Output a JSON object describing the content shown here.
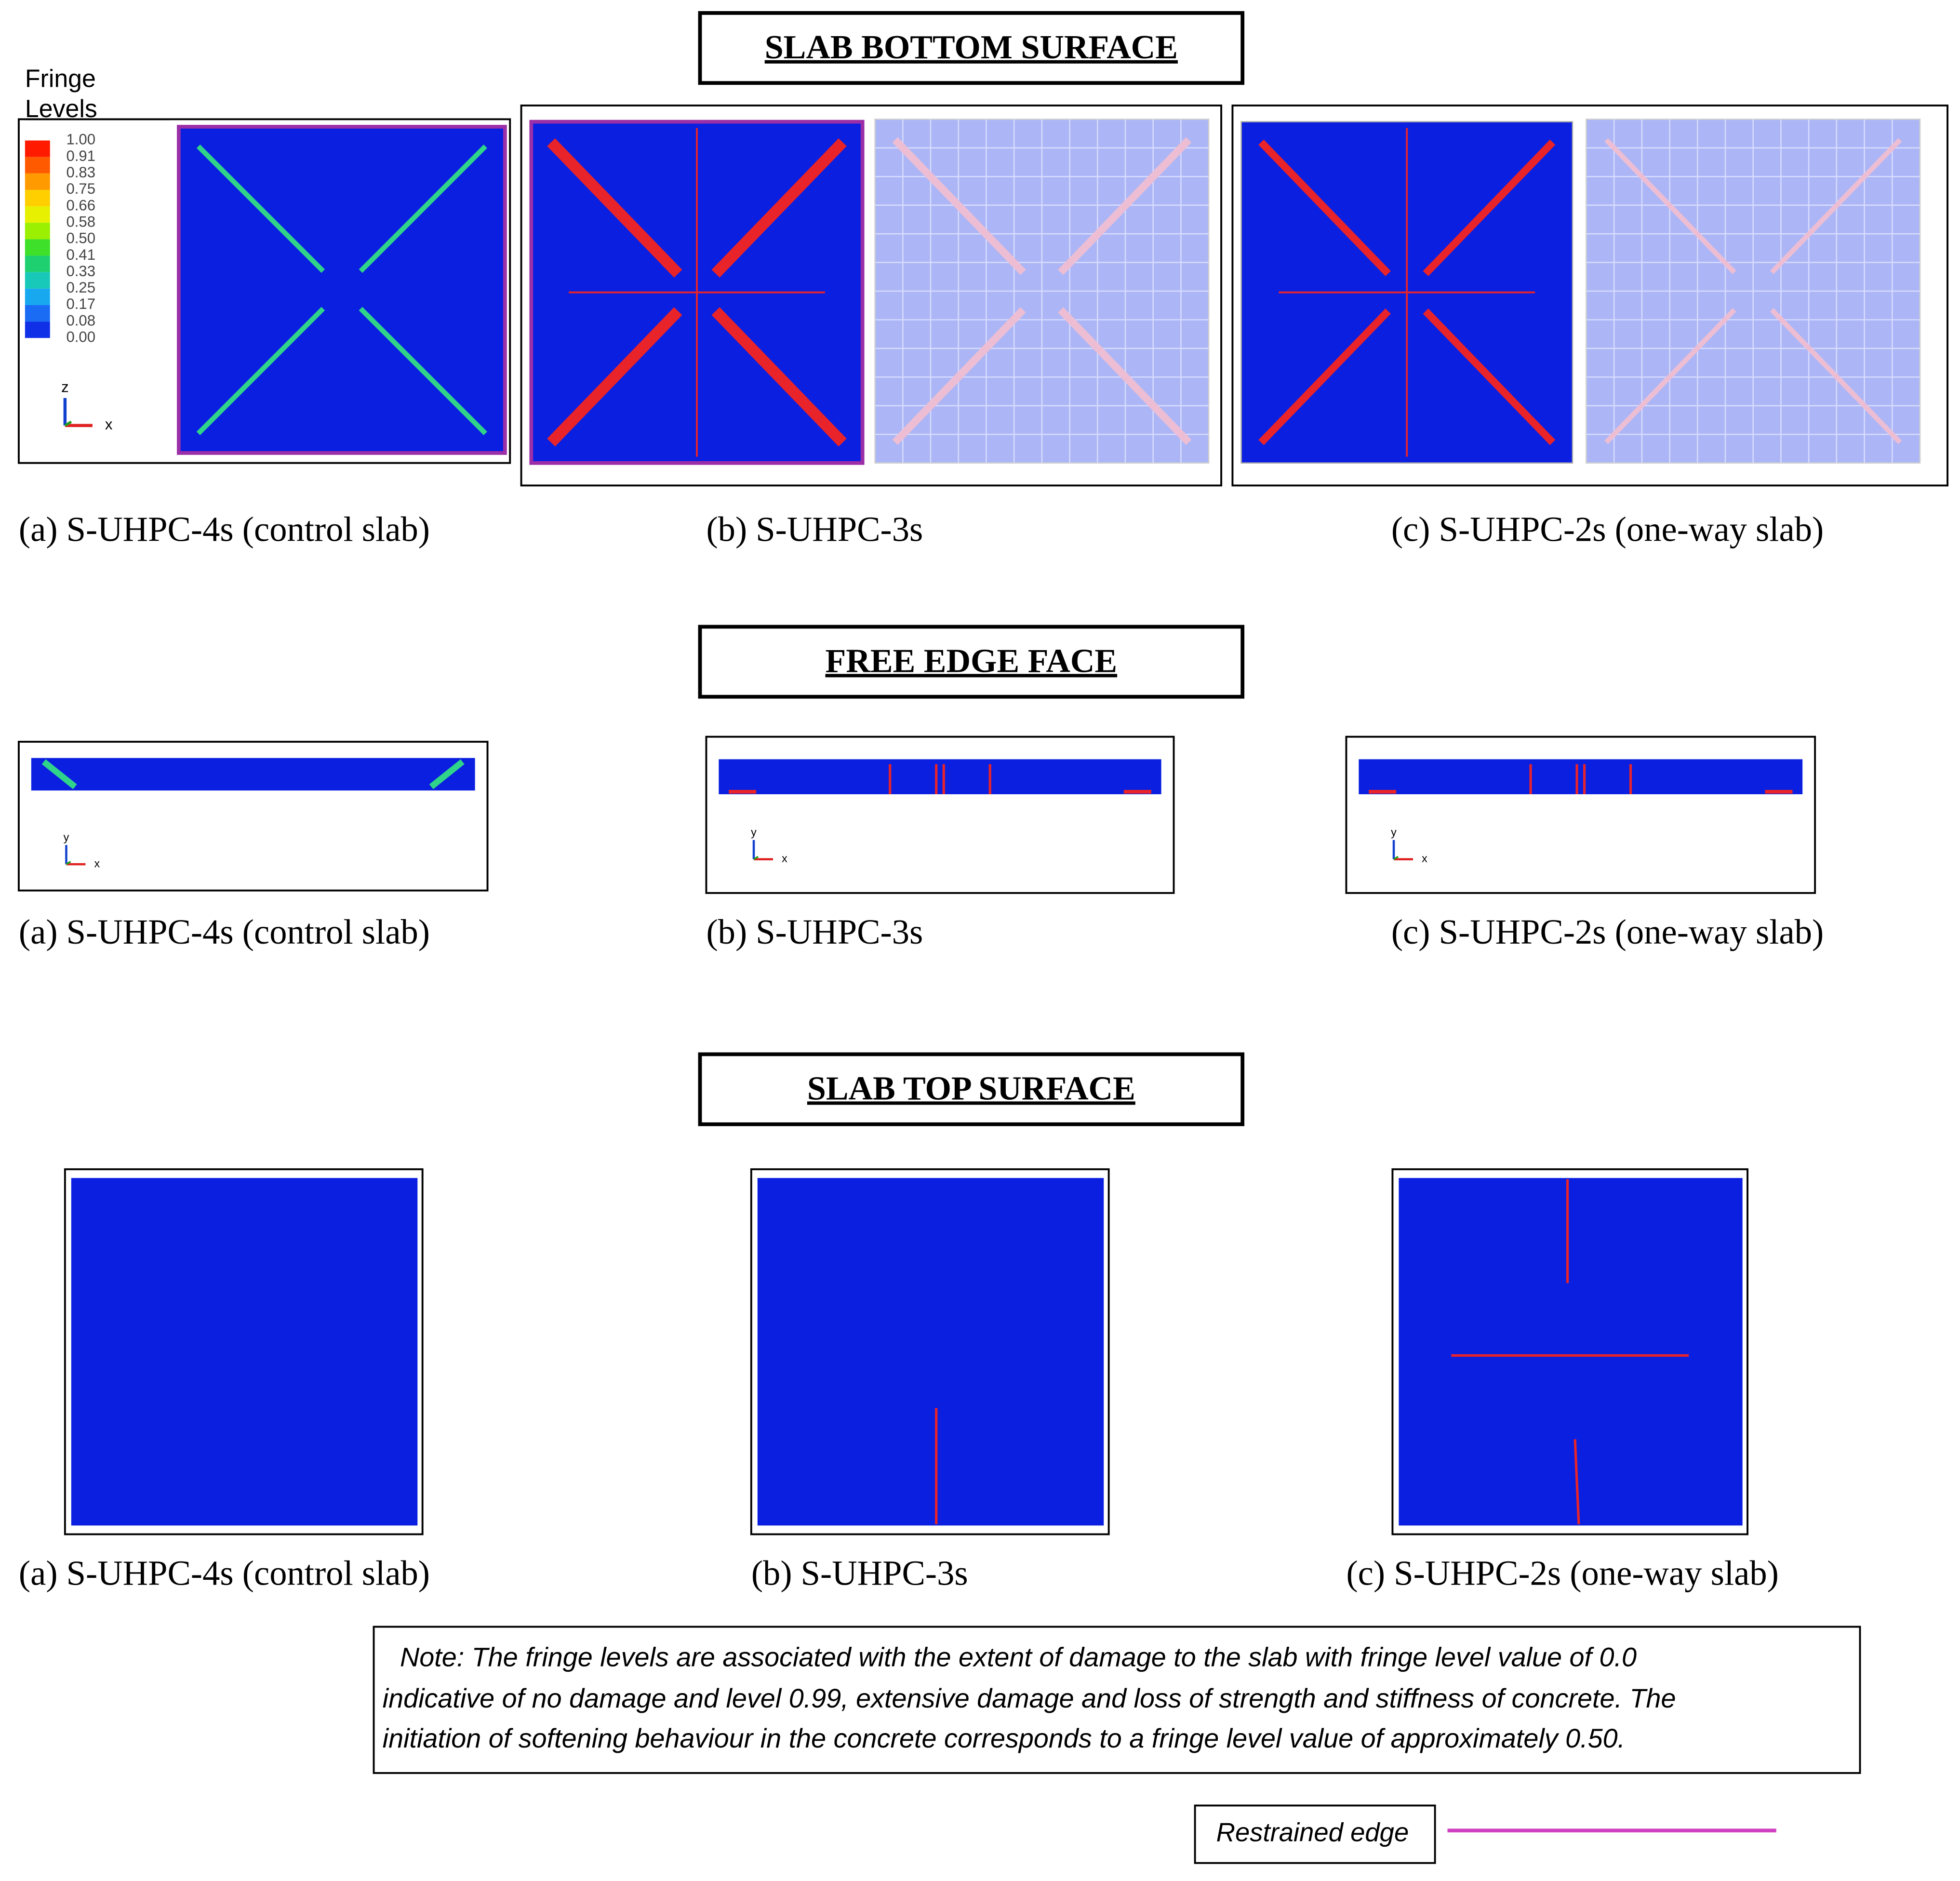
{
  "legend": {
    "title": [
      "Fringe",
      "Levels"
    ],
    "levels": [
      "1.00",
      "0.91",
      "0.83",
      "0.75",
      "0.66",
      "0.58",
      "0.50",
      "0.41",
      "0.33",
      "0.25",
      "0.17",
      "0.08",
      "0.00"
    ],
    "triad": [
      "z",
      "x"
    ]
  },
  "sections": [
    {
      "title": "SLAB BOTTOM SURFACE",
      "captions": [
        "(a) S-UHPC-4s (control slab)",
        "(b) S-UHPC-3s",
        "(c) S-UHPC-2s (one-way slab)"
      ]
    },
    {
      "title": "FREE EDGE FACE",
      "captions": [
        "(a) S-UHPC-4s (control slab)",
        "(b) S-UHPC-3s",
        "(c) S-UHPC-2s (one-way slab)"
      ],
      "triad": [
        "y",
        "x"
      ]
    },
    {
      "title": "SLAB TOP SURFACE",
      "captions": [
        "(a) S-UHPC-4s (control slab)",
        "(b) S-UHPC-3s",
        "(c) S-UHPC-2s (one-way slab)"
      ]
    }
  ],
  "note": [
    "Note: The fringe levels are associated with the extent of damage to the slab with fringe level value of 0.0",
    "indicative of no damage and level 0.99, extensive damage and loss of strength and stiffness of concrete. The",
    "initiation of softening behaviour in the concrete corresponds to a fringe level value of approximately 0.50."
  ],
  "restrained_edge": "Restrained edge"
}
